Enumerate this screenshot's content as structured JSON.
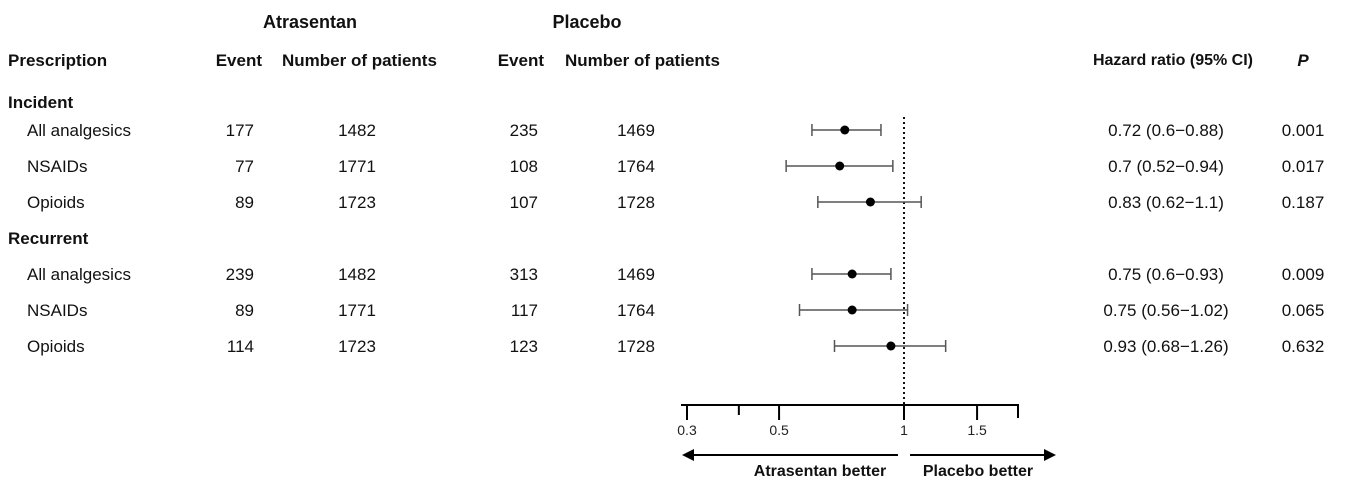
{
  "headers": {
    "group1": "Atrasentan",
    "group2": "Placebo",
    "prescription": "Prescription",
    "event": "Event",
    "patients": "Number of patients",
    "hr": "Hazard ratio (95% CI)",
    "p": "P"
  },
  "sections": [
    {
      "title": "Incident",
      "rows": [
        {
          "name": "All analgesics",
          "a_event": "177",
          "a_n": "1482",
          "p_event": "235",
          "p_n": "1469",
          "hr_text": "0.72 (0.6−0.88)",
          "p": "0.001"
        },
        {
          "name": "NSAIDs",
          "a_event": "77",
          "a_n": "1771",
          "p_event": "108",
          "p_n": "1764",
          "hr_text": "0.7 (0.52−0.94)",
          "p": "0.017"
        },
        {
          "name": "Opioids",
          "a_event": "89",
          "a_n": "1723",
          "p_event": "107",
          "p_n": "1728",
          "hr_text": "0.83 (0.62−1.1)",
          "p": "0.187"
        }
      ]
    },
    {
      "title": "Recurrent",
      "rows": [
        {
          "name": "All analgesics",
          "a_event": "239",
          "a_n": "1482",
          "p_event": "313",
          "p_n": "1469",
          "hr_text": "0.75 (0.6−0.93)",
          "p": "0.009"
        },
        {
          "name": "NSAIDs",
          "a_event": "89",
          "a_n": "1771",
          "p_event": "117",
          "p_n": "1764",
          "hr_text": "0.75 (0.56−1.02)",
          "p": "0.065"
        },
        {
          "name": "Opioids",
          "a_event": "114",
          "a_n": "1723",
          "p_event": "123",
          "p_n": "1728",
          "hr_text": "0.93 (0.68−1.26)",
          "p": "0.632"
        }
      ]
    }
  ],
  "axis": {
    "left_label": "Atrasentan better",
    "right_label": "Placebo better"
  },
  "chart_data": {
    "type": "forest",
    "series": [
      {
        "label": "Incident — All analgesics",
        "hr": 0.72,
        "lo": 0.6,
        "hi": 0.88
      },
      {
        "label": "Incident — NSAIDs",
        "hr": 0.7,
        "lo": 0.52,
        "hi": 0.94
      },
      {
        "label": "Incident — Opioids",
        "hr": 0.83,
        "lo": 0.62,
        "hi": 1.1
      },
      {
        "label": "Recurrent — All analgesics",
        "hr": 0.75,
        "lo": 0.6,
        "hi": 0.93
      },
      {
        "label": "Recurrent — NSAIDs",
        "hr": 0.75,
        "lo": 0.56,
        "hi": 1.02
      },
      {
        "label": "Recurrent — Opioids",
        "hr": 0.93,
        "lo": 0.68,
        "hi": 1.26
      }
    ],
    "xscale": "log",
    "xlim": [
      0.3,
      2.0
    ],
    "major_ticks": [
      0.3,
      0.5,
      1,
      1.5
    ],
    "minor_ticks": [
      0.4
    ],
    "tick_labels": [
      "0.3",
      "0.5",
      "1",
      "1.5"
    ],
    "reference_line": 1
  }
}
